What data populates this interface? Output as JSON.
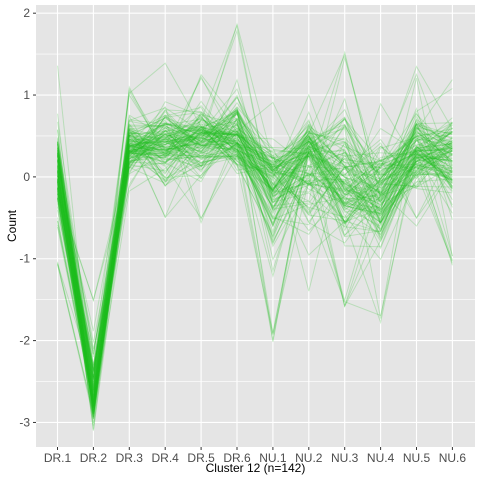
{
  "chart_data": {
    "type": "line",
    "title": "",
    "xlabel": "Cluster 12 (n=142)",
    "ylabel": "Count",
    "categories": [
      "DR.1",
      "DR.2",
      "DR.3",
      "DR.4",
      "DR.5",
      "DR.6",
      "NU.1",
      "NU.2",
      "NU.3",
      "NU.4",
      "NU.5",
      "NU.6"
    ],
    "ylim": [
      -3.3,
      2.1
    ],
    "yticks": [
      -3,
      -2,
      -1,
      0,
      1,
      2
    ],
    "grid": true,
    "legend": "none",
    "n_series": 142,
    "series_summary": {
      "median": [
        0.1,
        -2.75,
        0.35,
        0.4,
        0.45,
        0.45,
        0.0,
        0.25,
        -0.1,
        -0.2,
        0.3,
        0.3
      ],
      "min": [
        -1.1,
        -3.15,
        -0.2,
        -0.6,
        -0.65,
        -0.3,
        -2.05,
        -1.5,
        -1.65,
        -1.8,
        -0.65,
        -1.1
      ],
      "max": [
        1.4,
        -1.5,
        1.1,
        1.4,
        1.3,
        1.9,
        0.95,
        1.1,
        1.55,
        1.0,
        1.35,
        1.2
      ]
    },
    "colors": {
      "line": "#1fbf1f",
      "panel_background": "#e5e5e5",
      "grid": "#ffffff"
    }
  }
}
